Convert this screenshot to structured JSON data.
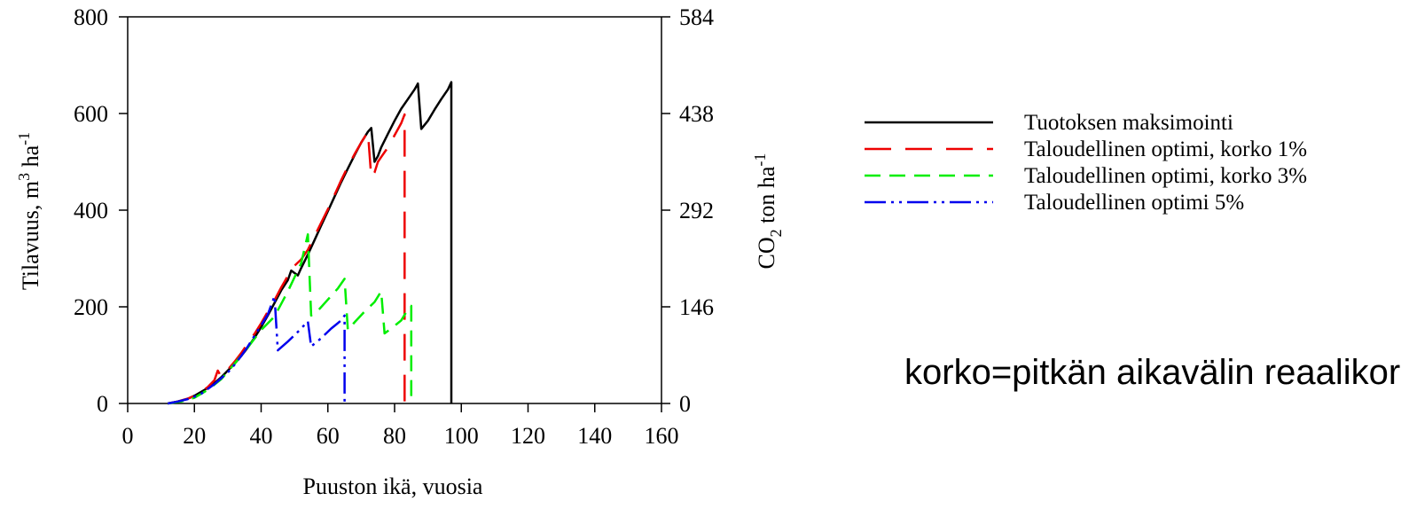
{
  "chart_data": {
    "type": "line",
    "xlabel": "Puuston ikä, vuosia",
    "ylabel": "Tilavuus, m",
    "ylabel_sup1": "3",
    "ylabel_mid": " ha",
    "ylabel_sup2": "-1",
    "y2label_pre": "CO",
    "y2label_sub": "2",
    "y2label_mid": " ton ha",
    "y2label_sup": "-1",
    "xlim": [
      0,
      160
    ],
    "ylim": [
      0,
      800
    ],
    "y2lim": [
      0,
      584
    ],
    "xticks": [
      "0",
      "20",
      "40",
      "60",
      "80",
      "100",
      "120",
      "140",
      "160"
    ],
    "yticks": [
      "0",
      "200",
      "400",
      "600",
      "800"
    ],
    "y2ticks": [
      "0",
      "146",
      "292",
      "438",
      "584"
    ],
    "grid": false,
    "legend_position": "right",
    "series": [
      {
        "name": "Tuotoksen maksimointi",
        "color": "#000000",
        "dash": "",
        "points": [
          [
            12,
            0
          ],
          [
            15,
            4
          ],
          [
            18,
            10
          ],
          [
            20,
            16
          ],
          [
            22,
            24
          ],
          [
            24,
            32
          ],
          [
            26,
            42
          ],
          [
            28,
            54
          ],
          [
            30,
            68
          ],
          [
            32,
            82
          ],
          [
            34,
            98
          ],
          [
            36,
            116
          ],
          [
            38,
            136
          ],
          [
            40,
            158
          ],
          [
            42,
            182
          ],
          [
            44,
            208
          ],
          [
            46,
            234
          ],
          [
            48,
            255
          ],
          [
            49,
            275
          ],
          [
            51,
            265
          ],
          [
            52,
            280
          ],
          [
            54,
            308
          ],
          [
            56,
            338
          ],
          [
            58,
            368
          ],
          [
            60,
            398
          ],
          [
            62,
            428
          ],
          [
            64,
            458
          ],
          [
            66,
            486
          ],
          [
            68,
            514
          ],
          [
            70,
            540
          ],
          [
            72,
            562
          ],
          [
            73,
            570
          ],
          [
            74,
            500
          ],
          [
            75,
            512
          ],
          [
            76,
            530
          ],
          [
            78,
            558
          ],
          [
            80,
            585
          ],
          [
            82,
            610
          ],
          [
            84,
            630
          ],
          [
            86,
            650
          ],
          [
            87,
            662
          ],
          [
            88,
            568
          ],
          [
            90,
            585
          ],
          [
            92,
            608
          ],
          [
            94,
            630
          ],
          [
            96,
            650
          ],
          [
            97,
            665
          ],
          [
            97,
            0
          ]
        ]
      },
      {
        "name": "Taloudellinen optimi, korko 1%",
        "color": "#ee0000",
        "dash": "30,16",
        "points": [
          [
            12,
            0
          ],
          [
            15,
            4
          ],
          [
            18,
            10
          ],
          [
            20,
            16
          ],
          [
            22,
            24
          ],
          [
            24,
            34
          ],
          [
            26,
            48
          ],
          [
            27,
            68
          ],
          [
            28,
            56
          ],
          [
            30,
            70
          ],
          [
            32,
            86
          ],
          [
            34,
            104
          ],
          [
            36,
            124
          ],
          [
            38,
            144
          ],
          [
            40,
            166
          ],
          [
            42,
            190
          ],
          [
            44,
            214
          ],
          [
            46,
            240
          ],
          [
            48,
            264
          ],
          [
            50,
            285
          ],
          [
            52,
            298
          ],
          [
            54,
            318
          ],
          [
            56,
            346
          ],
          [
            58,
            374
          ],
          [
            60,
            402
          ],
          [
            62,
            432
          ],
          [
            64,
            462
          ],
          [
            66,
            490
          ],
          [
            68,
            516
          ],
          [
            70,
            540
          ],
          [
            72,
            562
          ],
          [
            73,
            468
          ],
          [
            74,
            478
          ],
          [
            75,
            500
          ],
          [
            76,
            510
          ],
          [
            78,
            530
          ],
          [
            80,
            555
          ],
          [
            82,
            580
          ],
          [
            83,
            598
          ],
          [
            83,
            0
          ]
        ]
      },
      {
        "name": "Taloudellinen optimi, korko 3%",
        "color": "#00ee00",
        "dash": "18,10",
        "points": [
          [
            12,
            0
          ],
          [
            16,
            4
          ],
          [
            20,
            12
          ],
          [
            24,
            28
          ],
          [
            28,
            50
          ],
          [
            32,
            82
          ],
          [
            36,
            116
          ],
          [
            40,
            152
          ],
          [
            44,
            180
          ],
          [
            48,
            232
          ],
          [
            52,
            290
          ],
          [
            54,
            350
          ],
          [
            55,
            182
          ],
          [
            57,
            192
          ],
          [
            60,
            215
          ],
          [
            63,
            238
          ],
          [
            65,
            258
          ],
          [
            66,
            152
          ],
          [
            68,
            168
          ],
          [
            71,
            190
          ],
          [
            74,
            210
          ],
          [
            76,
            232
          ],
          [
            77,
            145
          ],
          [
            79,
            155
          ],
          [
            82,
            172
          ],
          [
            84,
            195
          ],
          [
            85,
            202
          ],
          [
            85,
            0
          ]
        ]
      },
      {
        "name": "Taloudellinen optimi 5%",
        "color": "#0000ee",
        "dash": "24,6,3,6,3,6",
        "points": [
          [
            12,
            0
          ],
          [
            15,
            4
          ],
          [
            18,
            9
          ],
          [
            20,
            14
          ],
          [
            22,
            20
          ],
          [
            24,
            30
          ],
          [
            26,
            40
          ],
          [
            28,
            52
          ],
          [
            30,
            64
          ],
          [
            32,
            80
          ],
          [
            34,
            98
          ],
          [
            36,
            118
          ],
          [
            38,
            140
          ],
          [
            40,
            162
          ],
          [
            42,
            184
          ],
          [
            44,
            222
          ],
          [
            45,
            110
          ],
          [
            48,
            128
          ],
          [
            51,
            148
          ],
          [
            54,
            170
          ],
          [
            55,
            118
          ],
          [
            58,
            135
          ],
          [
            61,
            155
          ],
          [
            64,
            172
          ],
          [
            65,
            182
          ],
          [
            65,
            0
          ]
        ]
      }
    ]
  },
  "note": "korko=pitkän aikavälin reaalikorko"
}
